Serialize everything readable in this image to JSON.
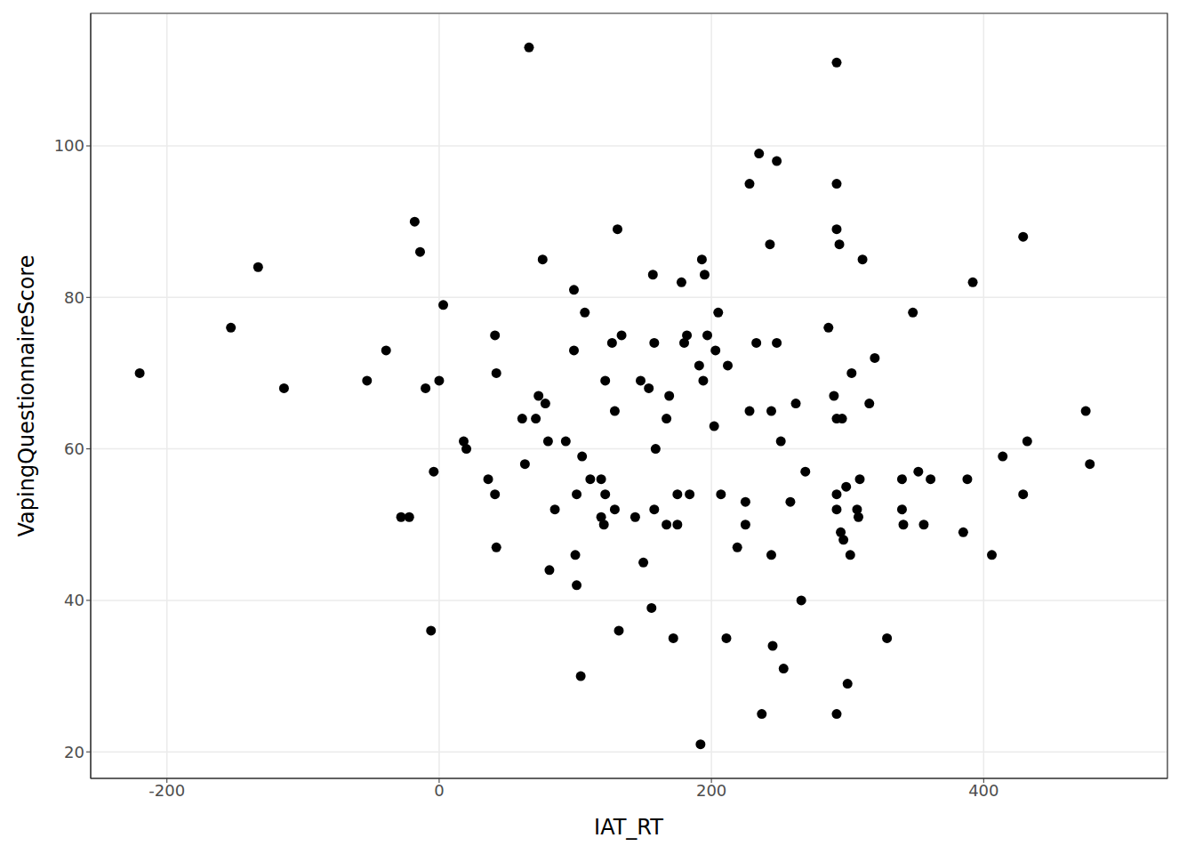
{
  "chart_data": {
    "type": "scatter",
    "x_label": "IAT_RT",
    "y_label": "VapingQuestionnaireScore",
    "x": [
      -220,
      -153,
      -133,
      -114,
      -53,
      -39,
      -28,
      -22,
      -18,
      -14,
      -10,
      -6,
      -4,
      0,
      3,
      18,
      20,
      36,
      41,
      41,
      42,
      42,
      61,
      63,
      66,
      71,
      73,
      76,
      78,
      80,
      81,
      85,
      93,
      99,
      99,
      100,
      101,
      101,
      104,
      105,
      107,
      111,
      119,
      119,
      121,
      122,
      122,
      127,
      129,
      129,
      131,
      132,
      134,
      144,
      148,
      150,
      154,
      156,
      157,
      158,
      158,
      159,
      167,
      167,
      169,
      172,
      175,
      175,
      178,
      180,
      182,
      184,
      191,
      192,
      193,
      195,
      194,
      197,
      203,
      202,
      205,
      207,
      212,
      211,
      219,
      225,
      225,
      228,
      228,
      233,
      235,
      237,
      243,
      244,
      244,
      245,
      248,
      248,
      251,
      253,
      258,
      262,
      266,
      269,
      286,
      290,
      292,
      292,
      292,
      292,
      292,
      292,
      292,
      294,
      295,
      296,
      297,
      299,
      300,
      302,
      303,
      307,
      308,
      309,
      311,
      316,
      320,
      329,
      340,
      340,
      341,
      348,
      352,
      356,
      361,
      385,
      388,
      392,
      406,
      414,
      429,
      429,
      432,
      475,
      478
    ],
    "values": [
      70,
      76,
      84,
      68,
      69,
      73,
      51,
      51,
      90,
      86,
      68,
      36,
      57,
      69,
      79,
      61,
      60,
      56,
      75,
      54,
      70,
      47,
      64,
      58,
      113,
      64,
      67,
      85,
      66,
      61,
      44,
      52,
      61,
      81,
      73,
      46,
      54,
      42,
      30,
      59,
      78,
      56,
      56,
      51,
      50,
      54,
      69,
      74,
      52,
      65,
      89,
      36,
      75,
      51,
      69,
      45,
      68,
      39,
      83,
      52,
      74,
      60,
      64,
      50,
      67,
      35,
      54,
      50,
      82,
      74,
      75,
      54,
      71,
      21,
      85,
      83,
      69,
      75,
      73,
      63,
      78,
      54,
      71,
      35,
      47,
      53,
      50,
      95,
      65,
      74,
      99,
      25,
      87,
      65,
      46,
      34,
      98,
      74,
      61,
      31,
      53,
      66,
      40,
      57,
      76,
      67,
      111,
      95,
      89,
      64,
      54,
      52,
      25,
      87,
      49,
      64,
      48,
      55,
      29,
      46,
      70,
      52,
      51,
      56,
      85,
      66,
      72,
      35,
      56,
      52,
      50,
      78,
      57,
      50,
      56,
      49,
      56,
      82,
      46,
      59,
      88,
      54,
      61,
      65,
      58
    ],
    "color": "#000000",
    "xlim": [
      -256,
      535
    ],
    "ylim": [
      16.5,
      117.5
    ],
    "xticks": [
      -200,
      0,
      200,
      400
    ],
    "yticks": [
      20,
      40,
      60,
      80,
      100
    ],
    "grid": true
  }
}
